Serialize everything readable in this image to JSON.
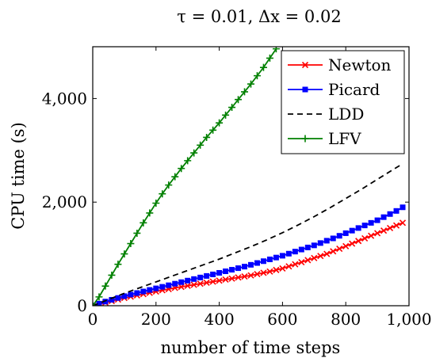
{
  "chart_data": {
    "type": "line",
    "title": "τ = 0.01, Δx = 0.02",
    "xlabel": "number of time steps",
    "ylabel": "CPU time (s)",
    "xlim": [
      0,
      1000
    ],
    "ylim": [
      0,
      5000
    ],
    "x_ticks": [
      0,
      200,
      400,
      600,
      800,
      1000
    ],
    "x_tick_labels": [
      "0",
      "200",
      "400",
      "600",
      "800",
      "1,000"
    ],
    "y_ticks": [
      0,
      2000,
      4000
    ],
    "y_tick_labels": [
      "0",
      "2,000",
      "4,000"
    ],
    "grid": false,
    "legend_position": "top-right",
    "series": [
      {
        "name": "Newton",
        "color": "#ff0000",
        "marker": "x",
        "dash": "solid",
        "x": [
          0,
          20,
          40,
          60,
          80,
          100,
          120,
          140,
          160,
          180,
          200,
          220,
          240,
          260,
          280,
          300,
          320,
          340,
          360,
          380,
          400,
          420,
          440,
          460,
          480,
          500,
          520,
          540,
          560,
          580,
          600,
          620,
          640,
          660,
          680,
          700,
          720,
          740,
          760,
          780,
          800,
          820,
          840,
          860,
          880,
          900,
          920,
          940,
          960,
          980
        ],
        "y": [
          0,
          30,
          60,
          90,
          120,
          150,
          175,
          200,
          225,
          250,
          275,
          300,
          320,
          345,
          365,
          385,
          405,
          425,
          445,
          465,
          485,
          505,
          525,
          545,
          565,
          585,
          610,
          635,
          660,
          690,
          720,
          760,
          800,
          840,
          880,
          920,
          960,
          1000,
          1050,
          1100,
          1150,
          1200,
          1250,
          1300,
          1350,
          1400,
          1450,
          1500,
          1550,
          1600
        ]
      },
      {
        "name": "Picard",
        "color": "#0000ff",
        "marker": "square",
        "dash": "solid",
        "x": [
          0,
          20,
          40,
          60,
          80,
          100,
          120,
          140,
          160,
          180,
          200,
          220,
          240,
          260,
          280,
          300,
          320,
          340,
          360,
          380,
          400,
          420,
          440,
          460,
          480,
          500,
          520,
          540,
          560,
          580,
          600,
          620,
          640,
          660,
          680,
          700,
          720,
          740,
          760,
          780,
          800,
          820,
          840,
          860,
          880,
          900,
          920,
          940,
          960,
          980
        ],
        "y": [
          0,
          40,
          80,
          115,
          150,
          185,
          215,
          245,
          275,
          305,
          335,
          365,
          395,
          425,
          455,
          485,
          515,
          545,
          575,
          605,
          635,
          665,
          695,
          725,
          755,
          790,
          825,
          860,
          895,
          930,
          965,
          1005,
          1045,
          1085,
          1125,
          1165,
          1210,
          1255,
          1300,
          1350,
          1400,
          1450,
          1500,
          1550,
          1600,
          1650,
          1710,
          1770,
          1830,
          1900
        ]
      },
      {
        "name": "LDD",
        "color": "#000000",
        "marker": "none",
        "dash": "dashed",
        "x": [
          0,
          50,
          100,
          150,
          200,
          250,
          300,
          350,
          400,
          450,
          500,
          550,
          600,
          650,
          700,
          750,
          800,
          850,
          900,
          950,
          980
        ],
        "y": [
          0,
          120,
          240,
          350,
          460,
          570,
          680,
          790,
          900,
          1020,
          1140,
          1270,
          1410,
          1560,
          1720,
          1890,
          2070,
          2250,
          2440,
          2630,
          2740
        ]
      },
      {
        "name": "LFV",
        "color": "#008000",
        "marker": "plus",
        "dash": "solid",
        "x": [
          0,
          20,
          40,
          60,
          80,
          100,
          120,
          140,
          160,
          180,
          200,
          220,
          240,
          260,
          280,
          300,
          320,
          340,
          360,
          380,
          400,
          420,
          440,
          460,
          480,
          500,
          520,
          540,
          560,
          580
        ],
        "y": [
          0,
          170,
          380,
          590,
          800,
          1000,
          1200,
          1400,
          1600,
          1790,
          1980,
          2160,
          2330,
          2490,
          2650,
          2800,
          2950,
          3100,
          3250,
          3390,
          3530,
          3680,
          3830,
          3980,
          4130,
          4280,
          4440,
          4600,
          4780,
          4960
        ]
      }
    ]
  }
}
